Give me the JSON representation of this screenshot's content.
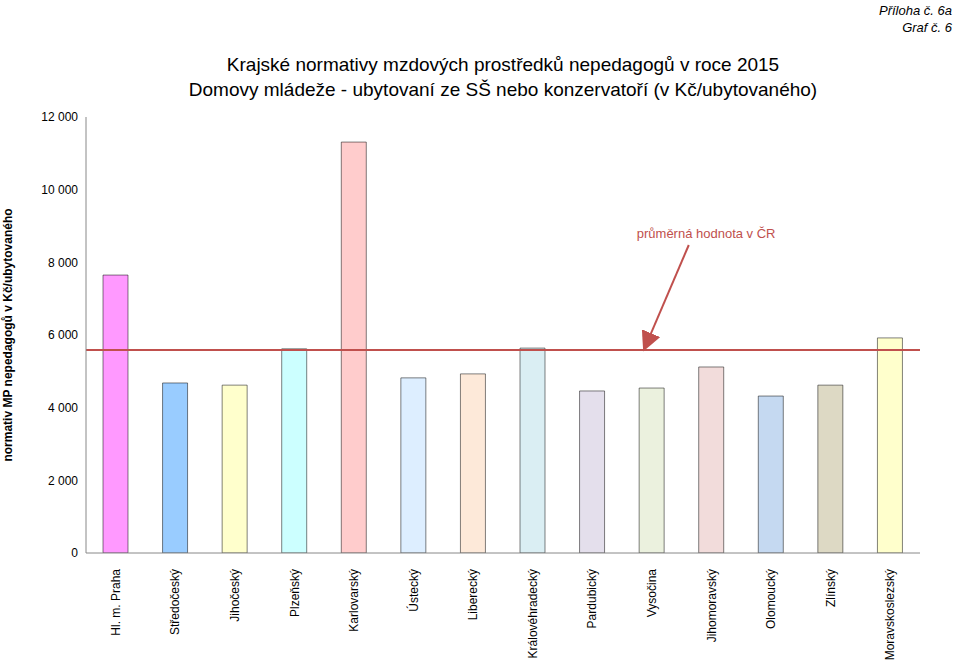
{
  "chart_data": {
    "type": "bar",
    "header": [
      "Příloha č. 6a",
      "Graf č. 6"
    ],
    "title": "Krajské normativy mzdových prostředků nepedagogů v roce 2015",
    "subtitle": "Domovy mládeže - ubytovaní ze SŠ nebo konzervatoří (v Kč/ubytovaného)",
    "y_label": "normativ MP nepedagogů v Kč/ubytovaného",
    "categories": [
      "Hl. m. Praha",
      "Středočeský",
      "Jihočeský",
      "Plzeňský",
      "Karlovarský",
      "Ústecký",
      "Liberecký",
      "Královéhradecký",
      "Pardubický",
      "Vysočina",
      "Jihomoravský",
      "Olomoucký",
      "Zlínský",
      "Moravskoslezský"
    ],
    "values": [
      7650,
      4680,
      4620,
      5620,
      11310,
      4820,
      4930,
      5640,
      4460,
      4540,
      5120,
      4320,
      4620,
      5920
    ],
    "colors": [
      "#ff99ff",
      "#99ccff",
      "#ffffcc",
      "#ccffff",
      "#ffcccc",
      "#ddeeff",
      "#fde9d9",
      "#daeef3",
      "#e4dfec",
      "#ebf1de",
      "#f2dcdb",
      "#c5d9f1",
      "#ddd9c4",
      "#ffffcc"
    ],
    "ylim": [
      0,
      12000
    ],
    "yticks": [
      0,
      {
        "value": 2000,
        "label": "2 000"
      },
      {
        "value": 4000,
        "label": "4 000"
      },
      {
        "value": 6000,
        "label": "6 000"
      },
      {
        "value": 8000,
        "label": "8 000"
      },
      {
        "value": 10000,
        "label": "10 000"
      },
      {
        "value": 12000,
        "label": "12 000"
      }
    ],
    "grid": false,
    "reference_line": {
      "value": 5590,
      "label": "průměrná hodnota v ČR",
      "color": "#c0504d"
    }
  }
}
